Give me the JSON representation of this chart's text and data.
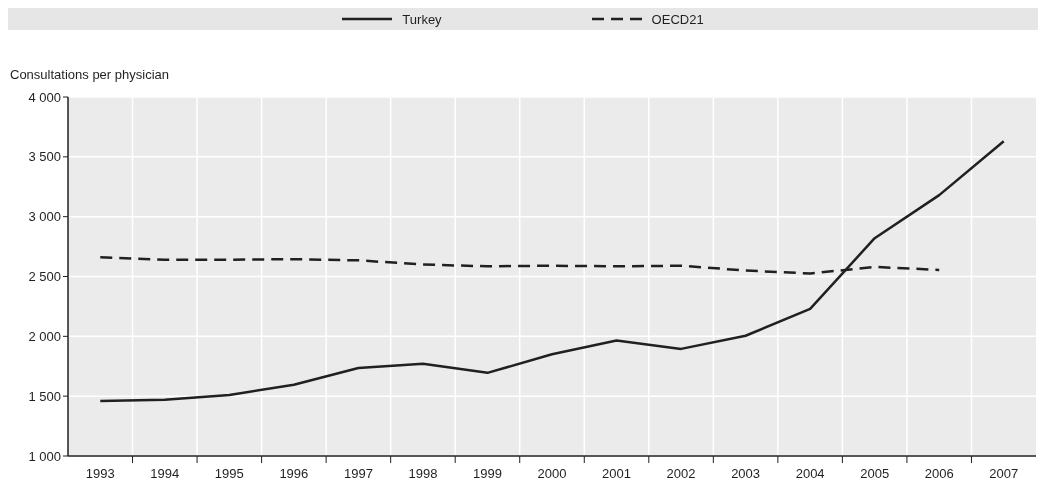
{
  "chart_data": {
    "type": "line",
    "ylabel": "Consultations per physician",
    "categories": [
      "1993",
      "1994",
      "1995",
      "1996",
      "1997",
      "1998",
      "1999",
      "2000",
      "2001",
      "2002",
      "2003",
      "2004",
      "2005",
      "2006",
      "2007"
    ],
    "series": [
      {
        "name": "Turkey",
        "color": "#231f20",
        "line_style": "solid",
        "values": [
          1460,
          1470,
          1510,
          1595,
          1735,
          1770,
          1695,
          1850,
          1965,
          1895,
          2005,
          2230,
          2820,
          3180,
          3630
        ]
      },
      {
        "name": "OECD21",
        "color": "#231f20",
        "line_style": "dashed",
        "values": [
          2660,
          2640,
          2640,
          2645,
          2635,
          2600,
          2585,
          2590,
          2585,
          2590,
          2550,
          2525,
          2580,
          2555,
          null
        ]
      }
    ],
    "ylim": [
      1000,
      4000
    ],
    "yticks": [
      {
        "value": 1000,
        "label": "1 000"
      },
      {
        "value": 1500,
        "label": "1 500"
      },
      {
        "value": 2000,
        "label": "2 000"
      },
      {
        "value": 2500,
        "label": "2 500"
      },
      {
        "value": 3000,
        "label": "3 000"
      },
      {
        "value": 3500,
        "label": "3 500"
      },
      {
        "value": 4000,
        "label": "4 000"
      }
    ],
    "grid": true,
    "legend": "top",
    "marker": "none"
  }
}
